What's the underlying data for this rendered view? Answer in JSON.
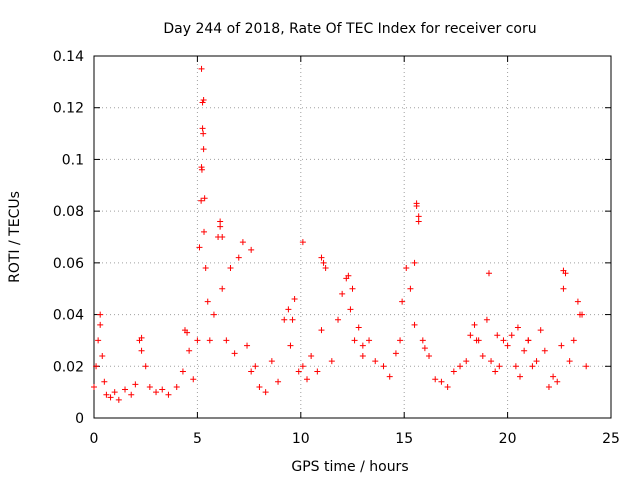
{
  "chart_data": {
    "type": "scatter",
    "title": "Day 244 of 2018, Rate Of TEC Index for receiver coru",
    "xlabel": "GPS time / hours",
    "ylabel": "ROTI / TECUs",
    "xlim": [
      0,
      25
    ],
    "ylim": [
      0,
      0.14
    ],
    "xticks": [
      0,
      5,
      10,
      15,
      20,
      25
    ],
    "xtick_labels": [
      "0",
      "5",
      "10",
      "15",
      "20",
      "25"
    ],
    "yticks": [
      0,
      0.02,
      0.04,
      0.06,
      0.08,
      0.1,
      0.12,
      0.14
    ],
    "ytick_labels": [
      "0",
      "0.02",
      "0.04",
      "0.06",
      "0.08",
      "0.1",
      "0.12",
      "0.14"
    ],
    "grid": true,
    "marker": "plus",
    "color": "#ff0000",
    "series": [
      {
        "name": "ROTI",
        "x": [
          0.0,
          0.1,
          0.2,
          0.3,
          0.4,
          0.5,
          0.6,
          0.8,
          1.0,
          1.2,
          1.5,
          1.8,
          2.0,
          2.2,
          2.3,
          2.5,
          2.7,
          3.0,
          3.3,
          3.6,
          4.0,
          4.3,
          4.5,
          4.6,
          4.8,
          5.0,
          5.1,
          5.2,
          5.25,
          5.3,
          5.35,
          5.4,
          5.5,
          5.6,
          5.8,
          6.0,
          6.1,
          6.2,
          6.4,
          6.6,
          6.8,
          7.0,
          7.2,
          7.4,
          7.6,
          7.8,
          8.0,
          8.3,
          8.6,
          8.9,
          9.2,
          9.5,
          9.7,
          9.9,
          10.1,
          10.3,
          10.5,
          10.8,
          11.0,
          11.2,
          11.5,
          11.8,
          12.0,
          12.2,
          12.4,
          12.6,
          12.8,
          13.0,
          13.3,
          13.6,
          14.0,
          14.3,
          14.6,
          14.9,
          15.1,
          15.3,
          15.5,
          15.6,
          15.7,
          15.9,
          16.2,
          16.5,
          16.8,
          17.1,
          17.4,
          17.7,
          18.0,
          18.2,
          18.4,
          18.6,
          18.8,
          19.0,
          19.2,
          19.4,
          19.6,
          19.8,
          20.0,
          20.2,
          20.4,
          20.6,
          20.8,
          21.0,
          21.2,
          21.4,
          21.6,
          21.8,
          22.0,
          22.2,
          22.4,
          22.6,
          22.7,
          22.8,
          23.0,
          23.2,
          23.4,
          23.6,
          23.8,
          5.2,
          5.25,
          5.3,
          5.22,
          5.28,
          5.18,
          5.32,
          6.1,
          6.2,
          7.6,
          10.1,
          11.0,
          12.3,
          15.6,
          15.7,
          15.5,
          19.1,
          22.7,
          2.3,
          0.3,
          4.4,
          9.4,
          9.6,
          11.1,
          12.5,
          13.0,
          14.8,
          16.0,
          18.5,
          19.5,
          20.5,
          21.0,
          23.5
        ],
        "y": [
          0.012,
          0.02,
          0.03,
          0.036,
          0.024,
          0.014,
          0.009,
          0.008,
          0.01,
          0.007,
          0.011,
          0.009,
          0.013,
          0.03,
          0.026,
          0.02,
          0.012,
          0.01,
          0.011,
          0.009,
          0.012,
          0.018,
          0.033,
          0.026,
          0.015,
          0.03,
          0.066,
          0.097,
          0.112,
          0.123,
          0.085,
          0.058,
          0.045,
          0.03,
          0.04,
          0.07,
          0.076,
          0.05,
          0.03,
          0.058,
          0.025,
          0.062,
          0.068,
          0.028,
          0.018,
          0.02,
          0.012,
          0.01,
          0.022,
          0.014,
          0.038,
          0.028,
          0.046,
          0.018,
          0.02,
          0.015,
          0.024,
          0.018,
          0.034,
          0.058,
          0.022,
          0.038,
          0.048,
          0.054,
          0.042,
          0.03,
          0.035,
          0.024,
          0.03,
          0.022,
          0.02,
          0.016,
          0.025,
          0.045,
          0.058,
          0.05,
          0.036,
          0.082,
          0.078,
          0.03,
          0.024,
          0.015,
          0.014,
          0.012,
          0.018,
          0.02,
          0.022,
          0.032,
          0.036,
          0.03,
          0.024,
          0.038,
          0.022,
          0.018,
          0.02,
          0.03,
          0.028,
          0.032,
          0.02,
          0.016,
          0.026,
          0.03,
          0.02,
          0.022,
          0.034,
          0.026,
          0.012,
          0.016,
          0.014,
          0.028,
          0.05,
          0.056,
          0.022,
          0.03,
          0.045,
          0.04,
          0.02,
          0.135,
          0.122,
          0.104,
          0.096,
          0.11,
          0.084,
          0.072,
          0.074,
          0.07,
          0.065,
          0.068,
          0.062,
          0.055,
          0.083,
          0.076,
          0.06,
          0.056,
          0.057,
          0.031,
          0.04,
          0.034,
          0.042,
          0.038,
          0.06,
          0.05,
          0.028,
          0.03,
          0.027,
          0.03,
          0.032,
          0.035,
          0.03,
          0.04
        ]
      }
    ]
  }
}
